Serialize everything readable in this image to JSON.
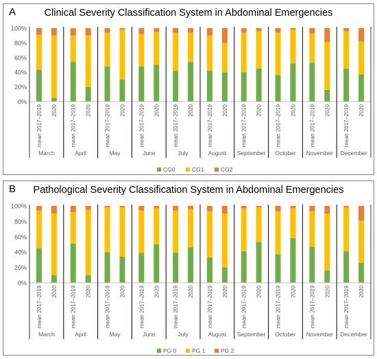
{
  "colors": {
    "level0": "#70ad47",
    "level1": "#ffc000",
    "level2": "#ed7d31",
    "axis": "#595959",
    "separator": "#000000"
  },
  "bar_labels": [
    "mean 2017–2019",
    "2020"
  ],
  "months": [
    "March",
    "April",
    "May",
    "June",
    "July",
    "August",
    "September",
    "October",
    "November",
    "December"
  ],
  "y_ticks": [
    "0%",
    "20%",
    "40%",
    "60%",
    "80%",
    "100%"
  ],
  "panels": [
    {
      "letter": "A",
      "title": "Clinical Severity Classification System in Abdominal Emergencies"
    },
    {
      "letter": "B",
      "title": "Pathological Severity Classification System in Abdominal Emergencies"
    }
  ],
  "chart_data": [
    {
      "type": "bar",
      "stacked": true,
      "percent": true,
      "title": "Clinical Severity Classification System in Abdominal Emergencies",
      "ylim": [
        0,
        100
      ],
      "categories": [
        "March mean 2017–2019",
        "March 2020",
        "April mean 2017–2019",
        "April 2020",
        "May mean 2017–2019",
        "May 2020",
        "June mean 2017–2019",
        "June 2020",
        "July mean 2017–2019",
        "July 2020",
        "August mean 2017–2019",
        "August 2020",
        "September mean 2017–2019",
        "September 2020",
        "October mean 2017–2019",
        "October 2020",
        "November mean 2017–2019",
        "November 2020",
        "December mean 2017–2019",
        "December 2020"
      ],
      "legend_position": "bottom",
      "series": [
        {
          "name": "CG0",
          "values": [
            43,
            5,
            54,
            20,
            48,
            30,
            48,
            50,
            42,
            54,
            42,
            40,
            40,
            45,
            36,
            52,
            53,
            16,
            45,
            37
          ]
        },
        {
          "name": "CG1",
          "values": [
            48,
            85,
            36,
            70,
            46,
            68,
            44,
            45,
            52,
            40,
            48,
            40,
            54,
            51,
            58,
            46,
            40,
            65,
            51,
            45
          ]
        },
        {
          "name": "CG2",
          "values": [
            9,
            10,
            10,
            10,
            6,
            2,
            8,
            5,
            6,
            6,
            10,
            20,
            6,
            4,
            6,
            2,
            7,
            19,
            4,
            18
          ]
        }
      ]
    },
    {
      "type": "bar",
      "stacked": true,
      "percent": true,
      "title": "Pathological Severity Classification System in Abdominal Emergencies",
      "ylim": [
        0,
        100
      ],
      "categories": [
        "March mean 2017–2019",
        "March 2020",
        "April mean 2017–2019",
        "April 2020",
        "May mean 2017–2019",
        "May 2020",
        "June mean 2017–2019",
        "June 2020",
        "July mean 2017–2019",
        "July 2020",
        "August mean 2017–2019",
        "August 2020",
        "September mean 2017–2019",
        "September 2020",
        "October mean 2017–2019",
        "October 2020",
        "November mean 2017–2019",
        "November 2020",
        "December mean 2017–2019",
        "December 2020"
      ],
      "legend_position": "bottom",
      "series": [
        {
          "name": "PG 0",
          "values": [
            45,
            10,
            51,
            10,
            40,
            34,
            39,
            50,
            39,
            46,
            33,
            20,
            41,
            53,
            37,
            58,
            47,
            16,
            41,
            26
          ]
        },
        {
          "name": "PG 1",
          "values": [
            49,
            80,
            41,
            85,
            58,
            64,
            55,
            47,
            55,
            50,
            60,
            70,
            56,
            45,
            56,
            39,
            46,
            74,
            57,
            55
          ]
        },
        {
          "name": "PG 2",
          "values": [
            6,
            10,
            8,
            5,
            2,
            2,
            6,
            3,
            6,
            4,
            7,
            10,
            3,
            2,
            7,
            3,
            7,
            10,
            2,
            19
          ]
        }
      ]
    }
  ]
}
